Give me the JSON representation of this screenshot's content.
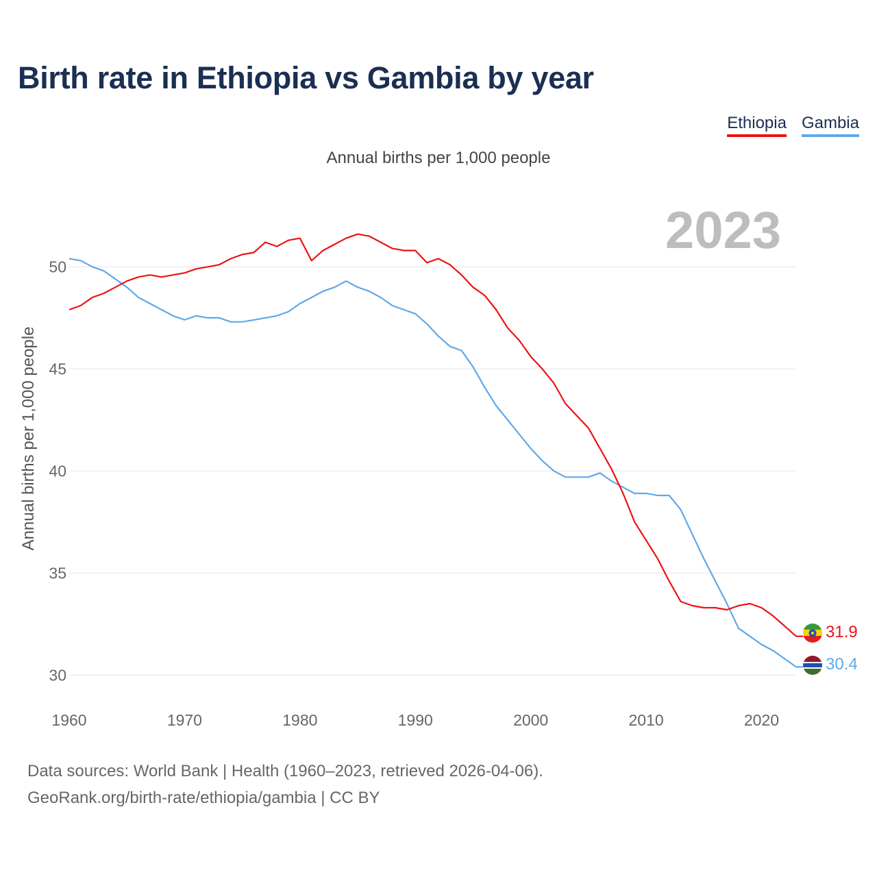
{
  "header": {
    "title": "Birth rate in Ethiopia vs Gambia by year"
  },
  "legend": {
    "items": [
      "Ethiopia",
      "Gambia"
    ]
  },
  "colors": {
    "Ethiopia": "#ee1111",
    "Gambia": "#5fa8ea",
    "title": "#1b2f52",
    "grid": "#e6e6e6",
    "watermark": "#bdbdbd"
  },
  "chart_data": {
    "type": "line",
    "title": "Birth rate in Ethiopia vs Gambia by year",
    "subtitle": "Annual births per 1,000 people",
    "ylabel": "Annual births per 1,000 people",
    "xlabel": "",
    "year_watermark": "2023",
    "xlim": [
      1960,
      2023
    ],
    "ylim": [
      28.5,
      53
    ],
    "yticks": [
      30,
      35,
      40,
      45,
      50
    ],
    "xticks": [
      1960,
      1970,
      1980,
      1990,
      2000,
      2010,
      2020
    ],
    "x": [
      1960,
      1961,
      1962,
      1963,
      1964,
      1965,
      1966,
      1967,
      1968,
      1969,
      1970,
      1971,
      1972,
      1973,
      1974,
      1975,
      1976,
      1977,
      1978,
      1979,
      1980,
      1981,
      1982,
      1983,
      1984,
      1985,
      1986,
      1987,
      1988,
      1989,
      1990,
      1991,
      1992,
      1993,
      1994,
      1995,
      1996,
      1997,
      1998,
      1999,
      2000,
      2001,
      2002,
      2003,
      2004,
      2005,
      2006,
      2007,
      2008,
      2009,
      2010,
      2011,
      2012,
      2013,
      2014,
      2015,
      2016,
      2017,
      2018,
      2019,
      2020,
      2021,
      2022,
      2023
    ],
    "series": [
      {
        "name": "Ethiopia",
        "values": [
          47.9,
          48.1,
          48.5,
          48.7,
          49.0,
          49.3,
          49.5,
          49.6,
          49.5,
          49.6,
          49.7,
          49.9,
          50.0,
          50.1,
          50.4,
          50.6,
          50.7,
          51.2,
          51.0,
          51.3,
          51.4,
          50.3,
          50.8,
          51.1,
          51.4,
          51.6,
          51.5,
          51.2,
          50.9,
          50.8,
          50.8,
          50.2,
          50.4,
          50.1,
          49.6,
          49.0,
          48.6,
          47.9,
          47.0,
          46.4,
          45.6,
          45.0,
          44.3,
          43.3,
          42.7,
          42.1,
          41.1,
          40.1,
          38.9,
          37.5,
          36.6,
          35.7,
          34.6,
          33.6,
          33.4,
          33.3,
          33.3,
          33.2,
          33.4,
          33.5,
          33.3,
          32.9,
          32.4,
          31.9
        ]
      },
      {
        "name": "Gambia",
        "values": [
          50.4,
          50.3,
          50.0,
          49.8,
          49.4,
          49.0,
          48.5,
          48.2,
          47.9,
          47.6,
          47.4,
          47.6,
          47.5,
          47.5,
          47.3,
          47.3,
          47.4,
          47.5,
          47.6,
          47.8,
          48.2,
          48.5,
          48.8,
          49.0,
          49.3,
          49.0,
          48.8,
          48.5,
          48.1,
          47.9,
          47.7,
          47.2,
          46.6,
          46.1,
          45.9,
          45.1,
          44.1,
          43.2,
          42.5,
          41.8,
          41.1,
          40.5,
          40.0,
          39.7,
          39.7,
          39.7,
          39.9,
          39.5,
          39.2,
          38.9,
          38.9,
          38.8,
          38.8,
          38.1,
          36.9,
          35.7,
          34.6,
          33.5,
          32.3,
          31.9,
          31.5,
          31.2,
          30.8,
          30.4
        ]
      }
    ],
    "end_labels": {
      "Ethiopia": "31.9",
      "Gambia": "30.4"
    }
  },
  "footer": {
    "source_line": "Data sources: World Bank | Health (1960–2023, retrieved 2026-04-06).",
    "credit_line": "GeoRank.org/birth-rate/ethiopia/gambia | CC BY"
  }
}
